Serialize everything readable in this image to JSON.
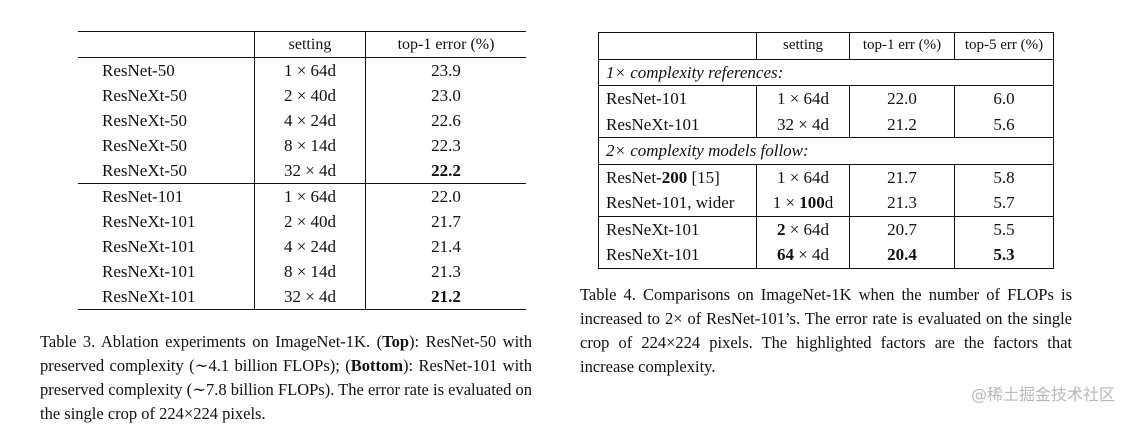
{
  "table3": {
    "header": {
      "model": "",
      "setting": "setting",
      "error": "top-1 error (%)"
    },
    "rows": [
      {
        "model": "ResNet-50",
        "setting": "1 × 64d",
        "error": "23.9",
        "bold": false
      },
      {
        "model": "ResNeXt-50",
        "setting": "2 × 40d",
        "error": "23.0",
        "bold": false
      },
      {
        "model": "ResNeXt-50",
        "setting": "4 × 24d",
        "error": "22.6",
        "bold": false
      },
      {
        "model": "ResNeXt-50",
        "setting": "8 × 14d",
        "error": "22.3",
        "bold": false
      },
      {
        "model": "ResNeXt-50",
        "setting": "32 × 4d",
        "error": "22.2",
        "bold": true
      },
      {
        "model": "ResNet-101",
        "setting": "1 × 64d",
        "error": "22.0",
        "bold": false
      },
      {
        "model": "ResNeXt-101",
        "setting": "2 × 40d",
        "error": "21.7",
        "bold": false
      },
      {
        "model": "ResNeXt-101",
        "setting": "4 × 24d",
        "error": "21.4",
        "bold": false
      },
      {
        "model": "ResNeXt-101",
        "setting": "8 × 14d",
        "error": "21.3",
        "bold": false
      },
      {
        "model": "ResNeXt-101",
        "setting": "32 × 4d",
        "error": "21.2",
        "bold": true
      }
    ],
    "caption": {
      "prefix": "Table 3. Ablation experiments on ImageNet-1K. (",
      "top_label": "Top",
      "part2": "): ResNet-50 with preserved complexity (∼4.1 billion FLOPs); (",
      "bottom_label": "Bottom",
      "part3": "): ResNet-101 with preserved complexity (∼7.8 billion FLOPs). The error rate is evaluated on the single crop of 224×224 pixels."
    }
  },
  "table4": {
    "header": {
      "model": "",
      "setting": "setting",
      "top1": "top-1 err (%)",
      "top5": "top-5 err (%)"
    },
    "section1": "1× complexity references:",
    "section2": "2× complexity models follow:",
    "rows1": [
      {
        "model": "ResNet-101",
        "setting": "1 × 64d",
        "top1": "22.0",
        "top5": "6.0"
      },
      {
        "model": "ResNeXt-101",
        "setting": "32 × 4d",
        "top1": "21.2",
        "top5": "5.6"
      }
    ],
    "rows2a": [
      {
        "model_pre": "ResNet-",
        "model_bold": "200",
        "model_post": " [15]",
        "set_pre": "1 × 64d",
        "set_bold": "",
        "set_post": "",
        "top1": "21.7",
        "top5": "5.8"
      },
      {
        "model_pre": "ResNet-101, wider",
        "model_bold": "",
        "model_post": "",
        "set_pre": "1 × ",
        "set_bold": "100",
        "set_post": "d",
        "top1": "21.3",
        "top5": "5.7"
      }
    ],
    "rows2b": [
      {
        "model": "ResNeXt-101",
        "set_bold": "2",
        "set_post": " × 64d",
        "top1": "20.7",
        "top5": "5.5",
        "bold": false
      },
      {
        "model": "ResNeXt-101",
        "set_bold": "64",
        "set_post": " × 4d",
        "top1": "20.4",
        "top5": "5.3",
        "bold": true
      }
    ],
    "caption": "Table 4. Comparisons on ImageNet-1K when the number of FLOPs is increased to 2× of ResNet-101’s. The error rate is evaluated on the single crop of 224×224 pixels. The highlighted factors are the factors that increase complexity."
  },
  "watermark": "@稀土掘金技术社区"
}
